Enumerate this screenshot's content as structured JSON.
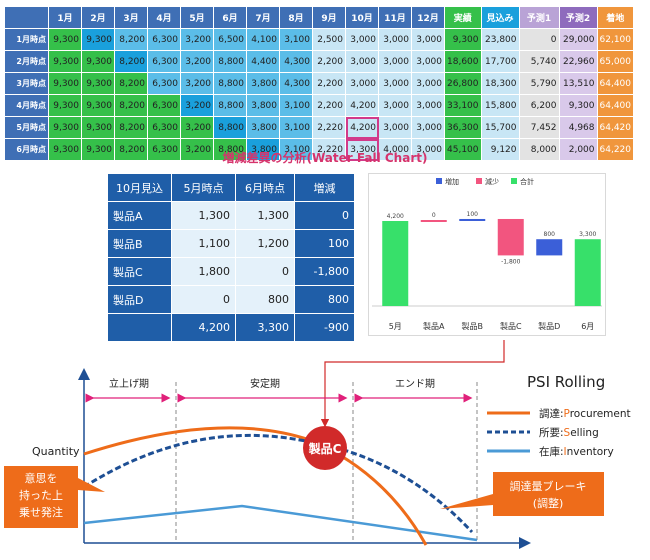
{
  "top_table": {
    "headers": [
      "",
      "1月",
      "2月",
      "3月",
      "4月",
      "5月",
      "6月",
      "7月",
      "8月",
      "9月",
      "10月",
      "11月",
      "12月",
      "実績",
      "見込み",
      "予測1",
      "予測2",
      "着地"
    ],
    "rows": [
      {
        "label": "1月時点",
        "cells": [
          "9,300",
          "9,300",
          "8,200",
          "6,300",
          "3,200",
          "6,500",
          "4,100",
          "3,100",
          "2,500",
          "3,000",
          "3,000",
          "3,000",
          "9,300",
          "23,800",
          "0",
          "29,000",
          "62,100"
        ]
      },
      {
        "label": "2月時点",
        "cells": [
          "9,300",
          "9,300",
          "8,200",
          "6,300",
          "3,200",
          "8,800",
          "4,400",
          "4,300",
          "2,200",
          "3,000",
          "3,000",
          "3,000",
          "18,600",
          "17,700",
          "5,740",
          "22,960",
          "65,000"
        ]
      },
      {
        "label": "3月時点",
        "cells": [
          "9,300",
          "9,300",
          "8,200",
          "6,300",
          "3,200",
          "8,800",
          "3,800",
          "4,300",
          "2,200",
          "3,000",
          "3,000",
          "3,000",
          "26,800",
          "18,300",
          "5,790",
          "13,510",
          "64,400"
        ]
      },
      {
        "label": "4月時点",
        "cells": [
          "9,300",
          "9,300",
          "8,200",
          "6,300",
          "3,200",
          "8,800",
          "3,800",
          "3,100",
          "2,200",
          "4,200",
          "3,000",
          "3,000",
          "33,100",
          "15,800",
          "6,200",
          "9,300",
          "64,400"
        ]
      },
      {
        "label": "5月時点",
        "cells": [
          "9,300",
          "9,300",
          "8,200",
          "6,300",
          "3,200",
          "8,800",
          "3,800",
          "3,100",
          "2,220",
          "4,200",
          "3,000",
          "3,000",
          "36,300",
          "15,700",
          "7,452",
          "4,968",
          "64,420"
        ]
      },
      {
        "label": "6月時点",
        "cells": [
          "9,300",
          "9,300",
          "8,200",
          "6,300",
          "3,200",
          "8,800",
          "3,800",
          "3,100",
          "2,220",
          "3,300",
          "4,000",
          "3,000",
          "45,100",
          "9,120",
          "8,000",
          "2,000",
          "64,220"
        ]
      }
    ],
    "colors": {
      "actual": "#35c04a",
      "forecast_light": "#c8e6f5",
      "forecast_mid": "#5bbde8",
      "forecast_strong": "#1aa0dc",
      "gray": "#dcdcdc",
      "p1": "#b9a3d6",
      "p2": "#8e6bbd",
      "landing": "#f0963c",
      "header": "#3f6fb5",
      "highlight": "#d23a8a"
    }
  },
  "waterfall": {
    "title": "増減差異の分析(Water Fall Chart)",
    "table": {
      "headers": [
        "10月見込",
        "5月時点",
        "6月時点",
        "増減"
      ],
      "rows": [
        {
          "label": "製品A",
          "may": "1,300",
          "jun": "1,300",
          "diff": "0"
        },
        {
          "label": "製品B",
          "may": "1,100",
          "jun": "1,200",
          "diff": "100"
        },
        {
          "label": "製品C",
          "may": "1,800",
          "jun": "0",
          "diff": "-1,800"
        },
        {
          "label": "製品D",
          "may": "0",
          "jun": "800",
          "diff": "800"
        }
      ],
      "total": {
        "label": "",
        "may": "4,200",
        "jun": "3,300",
        "diff": "-900"
      }
    }
  },
  "chart_data": {
    "type": "bar",
    "subtype": "waterfall",
    "categories": [
      "5月",
      "製品A",
      "製品B",
      "製品C",
      "製品D",
      "6月"
    ],
    "values": [
      4200,
      0,
      100,
      -1800,
      800,
      3300
    ],
    "data_labels": [
      "4,200",
      "0",
      "100",
      "-1,800",
      "800",
      "3,300"
    ],
    "legend": [
      "増加",
      "減少",
      "合計"
    ],
    "legend_placement": "top",
    "colors": {
      "increase": "#3b5fd8",
      "decrease": "#f2557f",
      "total": "#37e06a"
    }
  },
  "psi": {
    "title": "PSI Rolling",
    "phases": [
      "立上げ期",
      "安定期",
      "エンド期"
    ],
    "y_label": "Quantity",
    "legend": [
      {
        "prefix": "調達:",
        "initial": "P",
        "rest": "rocurement",
        "color": "#ee6c1a"
      },
      {
        "prefix": "所要:",
        "initial": "S",
        "rest": "elling",
        "color": "#1e4f94"
      },
      {
        "prefix": "在庫:",
        "initial": "I",
        "rest": "nventory",
        "color": "#4a9ad6"
      }
    ],
    "marker": "製品C",
    "callout_left": "意思を\n持った上\n乗せ発注",
    "callout_right": "調達量ブレーキ\n(調整)",
    "colors": {
      "procurement": "#ee6c1a",
      "selling": "#1e4f94",
      "inventory": "#4a9ad6",
      "phase_arrow": "#e0207a",
      "marker": "#d12a2a",
      "connector": "#d12a2a"
    }
  }
}
